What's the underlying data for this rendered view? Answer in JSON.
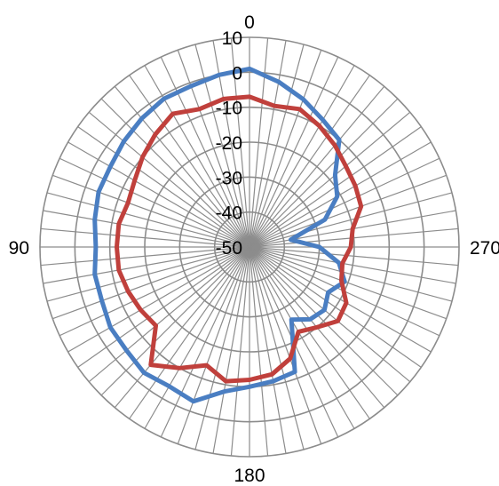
{
  "chart_data": {
    "type": "radar",
    "title": "",
    "angle_labels": [
      "0",
      "90",
      "180",
      "270"
    ],
    "angle_label_degrees": [
      0,
      90,
      180,
      270
    ],
    "angle_direction": "counterclockwise",
    "spokes": 72,
    "radial_ticks": [
      10,
      0,
      -10,
      -20,
      -30,
      -40,
      -50
    ],
    "rmin": -50,
    "rmax": 10,
    "grid": true,
    "legend": "none",
    "series": [
      {
        "color": "#4a7ec2",
        "points": [
          [
            0,
            1
          ],
          [
            10,
            0
          ],
          [
            20,
            -1
          ],
          [
            30,
            -1
          ],
          [
            40,
            -2
          ],
          [
            50,
            -3
          ],
          [
            60,
            -4
          ],
          [
            70,
            -4
          ],
          [
            80,
            -5
          ],
          [
            90,
            -6
          ],
          [
            100,
            -5
          ],
          [
            110,
            -5
          ],
          [
            120,
            -4
          ],
          [
            130,
            -4
          ],
          [
            140,
            -3
          ],
          [
            150,
            -4
          ],
          [
            160,
            -3
          ],
          [
            170,
            -8
          ],
          [
            180,
            -10
          ],
          [
            190,
            -11
          ],
          [
            200,
            -12
          ],
          [
            210,
            -26
          ],
          [
            220,
            -23
          ],
          [
            230,
            -22
          ],
          [
            240,
            -24
          ],
          [
            250,
            -21
          ],
          [
            260,
            -24
          ],
          [
            270,
            -30
          ],
          [
            280,
            -38
          ],
          [
            290,
            -27
          ],
          [
            300,
            -21
          ],
          [
            310,
            -18
          ],
          [
            320,
            -10
          ],
          [
            330,
            -8
          ],
          [
            340,
            -5
          ],
          [
            350,
            -2
          ],
          [
            360,
            1
          ]
        ]
      },
      {
        "color": "#c0403c",
        "points": [
          [
            0,
            -7
          ],
          [
            10,
            -7
          ],
          [
            20,
            -8
          ],
          [
            30,
            -6
          ],
          [
            40,
            -8
          ],
          [
            50,
            -10
          ],
          [
            60,
            -12
          ],
          [
            70,
            -13
          ],
          [
            80,
            -12
          ],
          [
            90,
            -12
          ],
          [
            100,
            -12
          ],
          [
            110,
            -13
          ],
          [
            120,
            -14
          ],
          [
            130,
            -15
          ],
          [
            140,
            -6
          ],
          [
            150,
            -10
          ],
          [
            160,
            -14
          ],
          [
            170,
            -11
          ],
          [
            180,
            -12
          ],
          [
            190,
            -13
          ],
          [
            200,
            -16
          ],
          [
            210,
            -22
          ],
          [
            220,
            -20
          ],
          [
            230,
            -17
          ],
          [
            240,
            -18
          ],
          [
            250,
            -22
          ],
          [
            260,
            -23
          ],
          [
            270,
            -21
          ],
          [
            280,
            -20
          ],
          [
            290,
            -16
          ],
          [
            300,
            -15
          ],
          [
            310,
            -14
          ],
          [
            320,
            -12
          ],
          [
            330,
            -10
          ],
          [
            340,
            -8
          ],
          [
            350,
            -9
          ],
          [
            360,
            -7
          ]
        ]
      }
    ]
  }
}
